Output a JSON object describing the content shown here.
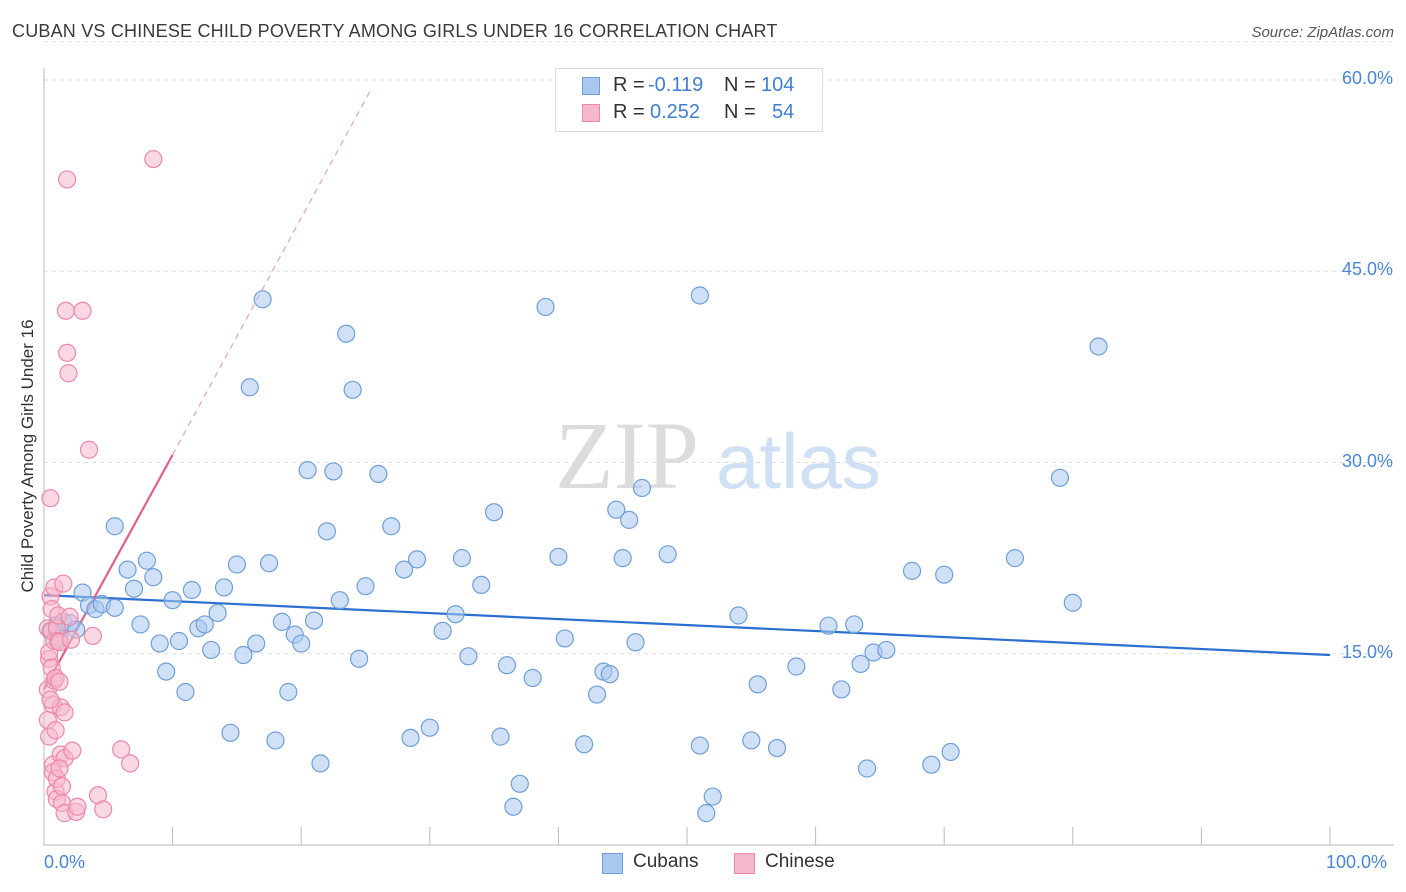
{
  "title": "CUBAN VS CHINESE CHILD POVERTY AMONG GIRLS UNDER 16 CORRELATION CHART",
  "source": "Source: ZipAtlas.com",
  "watermark": {
    "zip": "ZIP",
    "atlas": "atlas"
  },
  "stats": {
    "cubans": {
      "r_label": "R =",
      "r": "-0.119",
      "n_label": "N =",
      "n": "104"
    },
    "chinese": {
      "r_label": "R =",
      "r": "0.252",
      "n_label": "N =",
      "n": "54"
    }
  },
  "legend": {
    "cubans": "Cubans",
    "chinese": "Chinese"
  },
  "colors": {
    "cubans_fill": "#a9c8f0",
    "cubans_stroke": "#6f9fd8",
    "cubans_line": "#2b6fcf",
    "chinese_fill": "#f6b8cc",
    "chinese_stroke": "#ec88a8",
    "chinese_line": "#e0608a",
    "tick_label": "#4a86d4",
    "grid": "#dddddd"
  },
  "chart_data": {
    "type": "scatter",
    "title": "CUBAN VS CHINESE CHILD POVERTY AMONG GIRLS UNDER 16 CORRELATION CHART",
    "xlabel": "",
    "ylabel": "Child Poverty Among Girls Under 16",
    "xlim": [
      0,
      100
    ],
    "ylim": [
      0,
      63
    ],
    "x_tick_labels": {
      "left": "0.0%",
      "right": "100.0%"
    },
    "y_ticks": [
      15,
      30,
      45,
      60
    ],
    "y_tick_labels": [
      "15.0%",
      "30.0%",
      "45.0%",
      "60.0%"
    ],
    "series": [
      {
        "name": "Cubans",
        "points": [
          [
            0.5,
            16.8
          ],
          [
            1.0,
            17.2
          ],
          [
            1.2,
            16.2
          ],
          [
            1.5,
            17.5
          ],
          [
            2.0,
            17.4
          ],
          [
            2.5,
            16.9
          ],
          [
            3.0,
            19.8
          ],
          [
            3.5,
            18.8
          ],
          [
            4.0,
            18.5
          ],
          [
            4.5,
            18.9
          ],
          [
            5.5,
            18.6
          ],
          [
            5.5,
            25.0
          ],
          [
            6.5,
            21.6
          ],
          [
            7.0,
            20.1
          ],
          [
            7.5,
            17.3
          ],
          [
            8.0,
            22.3
          ],
          [
            8.5,
            21.0
          ],
          [
            9.0,
            15.8
          ],
          [
            9.5,
            13.6
          ],
          [
            10.0,
            19.2
          ],
          [
            10.5,
            16.0
          ],
          [
            11.0,
            12.0
          ],
          [
            11.5,
            20.0
          ],
          [
            12.0,
            17.0
          ],
          [
            12.5,
            17.3
          ],
          [
            13.0,
            15.3
          ],
          [
            13.5,
            18.2
          ],
          [
            14.0,
            20.2
          ],
          [
            14.5,
            8.8
          ],
          [
            15.0,
            22.0
          ],
          [
            15.5,
            14.9
          ],
          [
            16.0,
            35.9
          ],
          [
            16.5,
            15.8
          ],
          [
            17.0,
            42.8
          ],
          [
            17.5,
            22.1
          ],
          [
            18.0,
            8.2
          ],
          [
            18.5,
            17.5
          ],
          [
            19.0,
            12.0
          ],
          [
            19.5,
            16.5
          ],
          [
            20.0,
            15.8
          ],
          [
            20.5,
            29.4
          ],
          [
            21.0,
            17.6
          ],
          [
            21.5,
            6.4
          ],
          [
            22.0,
            24.6
          ],
          [
            22.5,
            29.3
          ],
          [
            23.0,
            19.2
          ],
          [
            23.5,
            40.1
          ],
          [
            24.0,
            35.7
          ],
          [
            24.5,
            14.6
          ],
          [
            25.0,
            20.3
          ],
          [
            26.0,
            29.1
          ],
          [
            27.0,
            25.0
          ],
          [
            28.0,
            21.6
          ],
          [
            28.5,
            8.4
          ],
          [
            29.0,
            22.4
          ],
          [
            30.0,
            9.2
          ],
          [
            31.0,
            16.8
          ],
          [
            32.0,
            18.1
          ],
          [
            32.5,
            22.5
          ],
          [
            33.0,
            14.8
          ],
          [
            34.0,
            20.4
          ],
          [
            35.0,
            26.1
          ],
          [
            35.5,
            8.5
          ],
          [
            36.0,
            14.1
          ],
          [
            37.0,
            4.8
          ],
          [
            36.5,
            3.0
          ],
          [
            38.0,
            13.1
          ],
          [
            39.0,
            42.2
          ],
          [
            40.5,
            16.2
          ],
          [
            42.0,
            7.9
          ],
          [
            43.0,
            11.8
          ],
          [
            43.5,
            13.6
          ],
          [
            44.0,
            13.4
          ],
          [
            44.5,
            26.3
          ],
          [
            45.0,
            22.5
          ],
          [
            45.5,
            25.5
          ],
          [
            46.5,
            28.0
          ],
          [
            46.0,
            15.9
          ],
          [
            48.5,
            22.8
          ],
          [
            51.0,
            7.8
          ],
          [
            51.5,
            2.5
          ],
          [
            52.0,
            3.8
          ],
          [
            54.0,
            18.0
          ],
          [
            55.0,
            8.2
          ],
          [
            55.5,
            12.6
          ],
          [
            57.0,
            7.6
          ],
          [
            58.5,
            14.0
          ],
          [
            61.0,
            17.2
          ],
          [
            62.0,
            12.2
          ],
          [
            63.0,
            17.3
          ],
          [
            63.5,
            14.2
          ],
          [
            64.0,
            6.0
          ],
          [
            64.5,
            15.1
          ],
          [
            65.5,
            15.3
          ],
          [
            67.5,
            21.5
          ],
          [
            69.0,
            6.3
          ],
          [
            70.0,
            21.2
          ],
          [
            70.5,
            7.3
          ],
          [
            75.5,
            22.5
          ],
          [
            79.0,
            28.8
          ],
          [
            80.0,
            19.0
          ],
          [
            82.0,
            39.1
          ],
          [
            51.0,
            43.1
          ],
          [
            40.0,
            22.6
          ]
        ]
      },
      {
        "name": "Chinese",
        "points": [
          [
            0.3,
            17.0
          ],
          [
            0.3,
            12.2
          ],
          [
            0.3,
            9.8
          ],
          [
            0.4,
            8.5
          ],
          [
            0.4,
            14.6
          ],
          [
            0.4,
            15.1
          ],
          [
            0.5,
            27.2
          ],
          [
            0.5,
            19.5
          ],
          [
            0.6,
            18.5
          ],
          [
            0.6,
            16.8
          ],
          [
            0.6,
            13.9
          ],
          [
            0.7,
            11.0
          ],
          [
            0.7,
            6.3
          ],
          [
            0.7,
            5.7
          ],
          [
            0.8,
            12.9
          ],
          [
            0.8,
            20.2
          ],
          [
            0.8,
            16.0
          ],
          [
            0.9,
            13.1
          ],
          [
            0.9,
            4.2
          ],
          [
            1.0,
            3.6
          ],
          [
            1.0,
            5.2
          ],
          [
            1.0,
            17.0
          ],
          [
            1.1,
            16.0
          ],
          [
            1.1,
            18.0
          ],
          [
            1.2,
            15.9
          ],
          [
            1.2,
            12.8
          ],
          [
            1.3,
            10.8
          ],
          [
            1.3,
            7.1
          ],
          [
            1.4,
            3.3
          ],
          [
            1.4,
            4.6
          ],
          [
            1.5,
            20.5
          ],
          [
            1.6,
            10.4
          ],
          [
            1.6,
            2.5
          ],
          [
            1.6,
            6.8
          ],
          [
            1.7,
            41.9
          ],
          [
            1.8,
            52.2
          ],
          [
            1.8,
            38.6
          ],
          [
            1.9,
            37.0
          ],
          [
            2.0,
            17.9
          ],
          [
            2.1,
            16.1
          ],
          [
            2.2,
            7.4
          ],
          [
            2.5,
            2.6
          ],
          [
            2.6,
            3.0
          ],
          [
            3.0,
            41.9
          ],
          [
            3.5,
            31.0
          ],
          [
            3.8,
            16.4
          ],
          [
            4.2,
            3.9
          ],
          [
            4.6,
            2.8
          ],
          [
            6.0,
            7.5
          ],
          [
            8.5,
            53.8
          ],
          [
            6.7,
            6.4
          ],
          [
            1.2,
            6.0
          ],
          [
            0.5,
            11.4
          ],
          [
            0.9,
            9.0
          ]
        ]
      }
    ],
    "trend_lines": [
      {
        "name": "Cubans",
        "x": [
          0,
          100
        ],
        "y": [
          19.6,
          14.9
        ]
      },
      {
        "name": "Chinese",
        "x": [
          0,
          10
        ],
        "y": [
          12.2,
          30.6
        ],
        "dashed_extension": {
          "x": [
            10,
            25.5
          ],
          "y": [
            30.6,
            59.4
          ]
        }
      }
    ]
  }
}
